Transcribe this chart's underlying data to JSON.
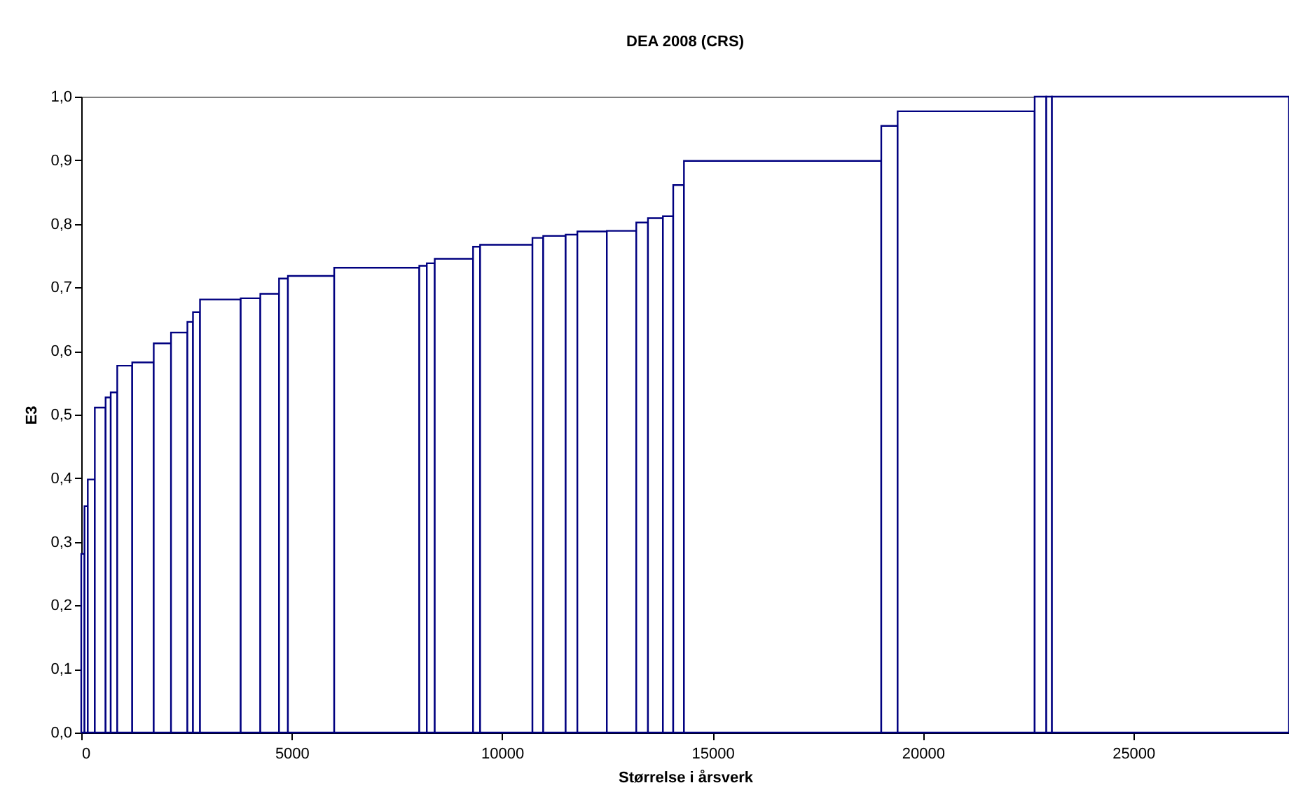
{
  "chart_data": {
    "type": "histogram",
    "title": "DEA 2008 (CRS)",
    "xlabel": "Størrelse i årsverk",
    "ylabel": "E3",
    "color": "#000080",
    "bins": [
      0,
      77,
      155,
      322,
      578,
      700,
      855,
      1211,
      1722,
      2133,
      2522,
      2655,
      2822,
      3789,
      4255,
      4700,
      4911,
      6011,
      8033,
      8211,
      8400,
      9311,
      9478,
      10722,
      10978,
      11511,
      11789,
      12489,
      13189,
      13467,
      13822,
      14067,
      14322,
      19011,
      19400,
      22656,
      22933,
      23067,
      28700
    ],
    "values": [
      0.281,
      0.356,
      0.398,
      0.511,
      0.527,
      0.535,
      0.577,
      0.582,
      0.612,
      0.629,
      0.646,
      0.661,
      0.681,
      0.683,
      0.69,
      0.714,
      0.718,
      0.731,
      0.734,
      0.738,
      0.745,
      0.764,
      0.767,
      0.778,
      0.781,
      0.783,
      0.788,
      0.789,
      0.802,
      0.809,
      0.812,
      0.861,
      0.899,
      0.954,
      0.977,
      1.0,
      1.0,
      1.0
    ],
    "xlim": [
      0,
      28700
    ],
    "xticks": [
      0,
      5000,
      10000,
      15000,
      20000,
      25000
    ],
    "ylim": [
      0,
      1
    ],
    "yticks": [
      {
        "value": 0,
        "label": "0,0"
      },
      {
        "value": 0.1,
        "label": "0,1"
      },
      {
        "value": 0.2,
        "label": "0,2"
      },
      {
        "value": 0.3,
        "label": "0,3"
      },
      {
        "value": 0.4,
        "label": "0,4"
      },
      {
        "value": 0.5,
        "label": "0,5"
      },
      {
        "value": 0.6,
        "label": "0,6"
      },
      {
        "value": 0.7,
        "label": "0,7"
      },
      {
        "value": 0.8,
        "label": "0,8"
      },
      {
        "value": 0.9,
        "label": "0,9"
      },
      {
        "value": 1,
        "label": "1,0"
      }
    ]
  }
}
